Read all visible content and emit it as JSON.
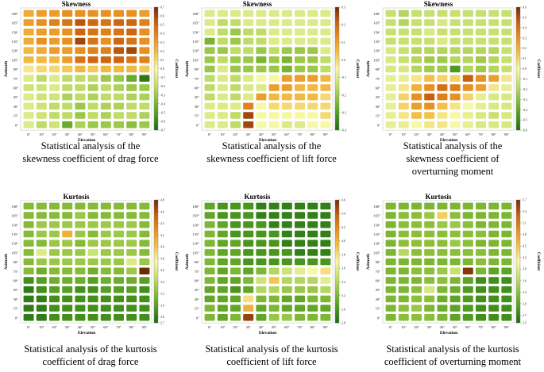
{
  "chart_data": [
    {
      "type": "heatmap",
      "title": "Skewness",
      "xlabel": "Elevation",
      "ylabel": "Azimuth",
      "colorbar_label": "Coefficient",
      "x": [
        "0°",
        "10°",
        "20°",
        "30°",
        "40°",
        "50°",
        "60°",
        "70°",
        "80°",
        "90°"
      ],
      "y": [
        "180°",
        "165°",
        "150°",
        "135°",
        "120°",
        "105°",
        "90°",
        "75°",
        "60°",
        "45°",
        "30°",
        "15°",
        "0°"
      ],
      "vmin": -0.7,
      "vmax": 0.7,
      "colorbar_ticks": [
        "0.7",
        "0.6",
        "0.5",
        "0.4",
        "0.3",
        "0.2",
        "0.1",
        "0.0",
        "-0.1",
        "-0.2",
        "-0.3",
        "-0.4",
        "-0.5",
        "-0.6",
        "-0.7"
      ],
      "values": [
        [
          0.25,
          0.3,
          0.3,
          0.35,
          0.35,
          0.35,
          0.35,
          0.35,
          0.35,
          0.3
        ],
        [
          0.3,
          0.35,
          0.4,
          0.45,
          0.55,
          0.5,
          0.45,
          0.5,
          0.5,
          0.4
        ],
        [
          0.25,
          0.3,
          0.3,
          0.35,
          0.5,
          0.45,
          0.4,
          0.45,
          0.5,
          0.35
        ],
        [
          0.25,
          0.35,
          0.3,
          0.35,
          0.6,
          0.45,
          0.35,
          0.5,
          0.45,
          0.35
        ],
        [
          0.2,
          0.25,
          0.3,
          0.3,
          0.35,
          0.4,
          0.4,
          0.55,
          0.6,
          0.35
        ],
        [
          0.2,
          0.2,
          0.2,
          0.3,
          0.45,
          0.5,
          0.5,
          0.5,
          0.45,
          0.4
        ],
        [
          0.05,
          0.1,
          0.1,
          0.15,
          0.2,
          0.15,
          0.2,
          0.2,
          0.2,
          0.15
        ],
        [
          -0.1,
          -0.2,
          -0.1,
          -0.2,
          -0.2,
          -0.2,
          -0.3,
          -0.3,
          -0.45,
          -0.65
        ],
        [
          -0.15,
          -0.15,
          -0.1,
          -0.2,
          -0.2,
          -0.25,
          -0.2,
          -0.25,
          -0.3,
          -0.3
        ],
        [
          -0.1,
          -0.15,
          -0.15,
          -0.25,
          -0.2,
          -0.25,
          -0.2,
          -0.2,
          -0.25,
          -0.25
        ],
        [
          -0.1,
          -0.15,
          -0.2,
          -0.2,
          -0.3,
          -0.2,
          -0.25,
          -0.25,
          -0.2,
          -0.2
        ],
        [
          -0.1,
          -0.15,
          -0.2,
          -0.2,
          -0.3,
          -0.2,
          -0.25,
          -0.2,
          -0.2,
          -0.25
        ],
        [
          -0.1,
          -0.2,
          -0.15,
          -0.45,
          -0.25,
          -0.3,
          -0.3,
          -0.3,
          -0.35,
          -0.3
        ]
      ]
    },
    {
      "type": "heatmap",
      "title": "Skewness",
      "xlabel": "Elevation",
      "ylabel": "Azimuth",
      "colorbar_label": "Coefficient",
      "x": [
        "0°",
        "10°",
        "20°",
        "30°",
        "40°",
        "50°",
        "60°",
        "70°",
        "80°",
        "90°"
      ],
      "y": [
        "180°",
        "165°",
        "150°",
        "135°",
        "120°",
        "105°",
        "90°",
        "75°",
        "60°",
        "45°",
        "30°",
        "15°",
        "0°"
      ],
      "vmin": -0.4,
      "vmax": 0.3,
      "colorbar_ticks": [
        "0.3",
        "0.2",
        "0.1",
        "0.0",
        "-0.1",
        "-0.2",
        "-0.3",
        "-0.4"
      ],
      "values": [
        [
          -0.1,
          -0.1,
          -0.1,
          -0.1,
          -0.1,
          -0.1,
          -0.1,
          -0.1,
          -0.1,
          -0.1
        ],
        [
          -0.1,
          -0.15,
          -0.15,
          -0.1,
          -0.1,
          -0.1,
          -0.1,
          -0.1,
          -0.1,
          -0.1
        ],
        [
          -0.1,
          -0.15,
          -0.2,
          -0.15,
          -0.15,
          -0.1,
          -0.1,
          -0.1,
          -0.1,
          -0.1
        ],
        [
          -0.25,
          -0.15,
          -0.2,
          -0.15,
          -0.15,
          -0.1,
          -0.1,
          -0.1,
          -0.1,
          -0.1
        ],
        [
          -0.2,
          -0.2,
          -0.15,
          -0.15,
          -0.2,
          -0.15,
          -0.2,
          -0.2,
          -0.2,
          -0.1
        ],
        [
          -0.2,
          -0.15,
          -0.2,
          -0.2,
          -0.25,
          -0.2,
          -0.25,
          -0.2,
          -0.2,
          -0.15
        ],
        [
          -0.2,
          -0.1,
          -0.2,
          -0.2,
          -0.2,
          -0.2,
          -0.25,
          -0.2,
          -0.2,
          -0.15
        ],
        [
          -0.15,
          -0.1,
          -0.15,
          -0.1,
          -0.05,
          -0.05,
          0.1,
          0.1,
          0.1,
          0.05
        ],
        [
          -0.15,
          -0.1,
          -0.15,
          -0.1,
          -0.1,
          0.1,
          0.1,
          0.05,
          0.05,
          0.05
        ],
        [
          -0.15,
          -0.1,
          -0.15,
          -0.1,
          0.1,
          0.05,
          0.05,
          0.05,
          0.05,
          0.0
        ],
        [
          -0.1,
          -0.1,
          -0.1,
          0.15,
          -0.05,
          0.0,
          0.0,
          0.0,
          0.0,
          0.0
        ],
        [
          -0.1,
          -0.1,
          -0.15,
          0.25,
          -0.05,
          -0.05,
          -0.05,
          -0.05,
          -0.05,
          0.0
        ],
        [
          -0.1,
          -0.1,
          -0.15,
          0.25,
          -0.05,
          -0.05,
          -0.1,
          -0.1,
          -0.05,
          -0.05
        ]
      ]
    },
    {
      "type": "heatmap",
      "title": "Skewness",
      "xlabel": "Elevation",
      "ylabel": "Azimuth",
      "colorbar_label": "Coefficient",
      "x": [
        "0°",
        "10°",
        "20°",
        "30°",
        "40°",
        "50°",
        "60°",
        "70°",
        "80°",
        "90°"
      ],
      "y": [
        "180°",
        "165°",
        "150°",
        "135°",
        "120°",
        "105°",
        "90°",
        "75°",
        "60°",
        "45°",
        "30°",
        "15°",
        "0°"
      ],
      "vmin": -0.6,
      "vmax": 0.6,
      "colorbar_ticks": [
        "0.6",
        "0.5",
        "0.4",
        "0.3",
        "0.2",
        "0.1",
        "0.0",
        "-0.1",
        "-0.2",
        "-0.3",
        "-0.4",
        "-0.5",
        "-0.6"
      ],
      "values": [
        [
          -0.15,
          -0.2,
          -0.15,
          -0.15,
          -0.15,
          -0.15,
          -0.15,
          -0.15,
          -0.15,
          -0.15
        ],
        [
          -0.15,
          -0.2,
          -0.15,
          -0.15,
          -0.1,
          -0.15,
          -0.15,
          -0.15,
          -0.15,
          -0.15
        ],
        [
          -0.15,
          -0.15,
          -0.15,
          -0.1,
          -0.15,
          -0.15,
          -0.15,
          -0.15,
          -0.15,
          -0.15
        ],
        [
          -0.15,
          -0.15,
          -0.15,
          -0.15,
          -0.1,
          -0.15,
          -0.15,
          -0.15,
          -0.15,
          -0.15
        ],
        [
          -0.1,
          -0.15,
          -0.2,
          -0.2,
          -0.2,
          -0.2,
          -0.2,
          -0.2,
          -0.2,
          -0.15
        ],
        [
          -0.1,
          -0.15,
          -0.2,
          -0.25,
          -0.25,
          -0.2,
          -0.2,
          -0.25,
          -0.2,
          -0.15
        ],
        [
          -0.1,
          -0.1,
          -0.2,
          -0.25,
          -0.25,
          -0.45,
          -0.2,
          -0.25,
          -0.2,
          -0.15
        ],
        [
          -0.05,
          -0.05,
          0.05,
          0.15,
          0.1,
          0.1,
          0.45,
          0.3,
          0.25,
          0.05
        ],
        [
          -0.05,
          0.05,
          0.2,
          0.3,
          0.4,
          0.35,
          0.3,
          0.25,
          0.05,
          -0.05
        ],
        [
          -0.05,
          0.1,
          0.3,
          0.45,
          0.35,
          0.3,
          0.1,
          -0.05,
          -0.1,
          -0.1
        ],
        [
          -0.05,
          0.1,
          0.25,
          0.3,
          0.15,
          0.05,
          0.0,
          -0.05,
          -0.1,
          -0.1
        ],
        [
          -0.05,
          0.05,
          0.15,
          0.15,
          0.05,
          0.0,
          -0.05,
          -0.1,
          -0.15,
          -0.1
        ],
        [
          -0.05,
          -0.05,
          0.0,
          0.05,
          0.05,
          0.0,
          -0.05,
          -0.1,
          -0.1,
          -0.1
        ]
      ]
    },
    {
      "type": "heatmap",
      "title": "Kurtosis",
      "xlabel": "Elevation",
      "ylabel": "Azimuth",
      "colorbar_label": "Coefficient",
      "x": [
        "0°",
        "10°",
        "20°",
        "30°",
        "40°",
        "50°",
        "60°",
        "70°",
        "80°",
        "90°"
      ],
      "y": [
        "180°",
        "165°",
        "150°",
        "135°",
        "120°",
        "105°",
        "90°",
        "75°",
        "60°",
        "45°",
        "30°",
        "15°",
        "0°"
      ],
      "vmin": 2.7,
      "vmax": 4.8,
      "colorbar_ticks": [
        "4.8",
        "4.6",
        "4.4",
        "4.2",
        "4.0",
        "3.8",
        "3.6",
        "3.4",
        "3.2",
        "3.0",
        "2.8",
        "2.7"
      ],
      "values": [
        [
          3.2,
          3.2,
          3.2,
          3.2,
          3.2,
          3.2,
          3.2,
          3.2,
          3.2,
          3.2
        ],
        [
          3.2,
          3.2,
          3.2,
          3.2,
          3.3,
          3.2,
          3.2,
          3.2,
          3.2,
          3.2
        ],
        [
          3.2,
          3.3,
          3.3,
          3.3,
          3.3,
          3.3,
          3.3,
          3.3,
          3.3,
          3.2
        ],
        [
          3.2,
          3.3,
          3.3,
          4.1,
          3.3,
          3.2,
          3.3,
          3.3,
          3.3,
          3.2
        ],
        [
          3.2,
          3.2,
          3.3,
          3.3,
          3.2,
          3.3,
          3.3,
          3.3,
          3.3,
          3.2
        ],
        [
          3.2,
          3.6,
          3.3,
          3.3,
          3.3,
          3.5,
          3.3,
          3.3,
          3.3,
          3.2
        ],
        [
          3.2,
          3.3,
          3.3,
          3.3,
          3.3,
          3.3,
          3.3,
          3.3,
          3.6,
          3.3
        ],
        [
          3.2,
          3.1,
          3.2,
          3.2,
          3.2,
          3.1,
          3.2,
          3.2,
          3.3,
          4.8
        ],
        [
          2.9,
          3.0,
          3.1,
          3.1,
          3.1,
          3.0,
          3.1,
          3.1,
          3.1,
          3.0
        ],
        [
          2.8,
          2.9,
          3.0,
          3.0,
          2.9,
          2.9,
          3.0,
          3.0,
          3.0,
          2.9
        ],
        [
          2.8,
          2.8,
          2.9,
          2.9,
          2.9,
          2.9,
          2.9,
          2.9,
          2.9,
          2.9
        ],
        [
          2.8,
          2.8,
          2.9,
          2.9,
          2.9,
          2.9,
          2.9,
          2.9,
          2.9,
          2.9
        ],
        [
          2.8,
          2.8,
          2.9,
          2.9,
          2.9,
          2.9,
          2.9,
          2.9,
          2.9,
          2.9
        ]
      ]
    },
    {
      "type": "heatmap",
      "title": "Kurtosis",
      "xlabel": "Elevation",
      "ylabel": "Azimuth",
      "colorbar_label": "Coefficient",
      "x": [
        "0°",
        "10°",
        "20°",
        "30°",
        "40°",
        "50°",
        "60°",
        "70°",
        "80°",
        "90°"
      ],
      "y": [
        "180°",
        "165°",
        "150°",
        "135°",
        "120°",
        "105°",
        "90°",
        "75°",
        "60°",
        "45°",
        "30°",
        "15°",
        "0°"
      ],
      "vmin": 2.8,
      "vmax": 4.6,
      "colorbar_ticks": [
        "4.6",
        "4.4",
        "4.2",
        "4.0",
        "3.8",
        "3.6",
        "3.4",
        "3.2",
        "3.0",
        "2.8"
      ],
      "values": [
        [
          3.1,
          3.0,
          3.0,
          3.0,
          2.9,
          2.9,
          2.9,
          2.9,
          2.9,
          2.9
        ],
        [
          3.1,
          3.0,
          3.0,
          3.0,
          2.9,
          2.9,
          2.9,
          2.9,
          2.9,
          2.9
        ],
        [
          3.2,
          3.1,
          3.0,
          3.0,
          3.0,
          2.9,
          2.9,
          2.9,
          2.9,
          2.9
        ],
        [
          3.2,
          3.1,
          3.0,
          3.0,
          3.0,
          3.0,
          2.9,
          2.9,
          2.9,
          2.9
        ],
        [
          3.2,
          3.1,
          3.1,
          3.0,
          3.0,
          3.0,
          2.9,
          2.9,
          2.9,
          2.9
        ],
        [
          3.2,
          3.1,
          3.1,
          3.0,
          3.0,
          3.0,
          3.0,
          2.9,
          2.9,
          2.9
        ],
        [
          3.2,
          3.1,
          3.1,
          3.0,
          3.0,
          3.0,
          3.0,
          3.0,
          3.0,
          3.0
        ],
        [
          3.2,
          3.1,
          3.2,
          3.1,
          3.2,
          3.4,
          3.5,
          3.6,
          3.7,
          3.8
        ],
        [
          3.2,
          3.1,
          3.1,
          3.2,
          3.5,
          3.9,
          3.4,
          3.4,
          3.4,
          3.6
        ],
        [
          3.1,
          3.1,
          3.0,
          3.1,
          3.4,
          3.4,
          3.3,
          3.3,
          3.3,
          3.4
        ],
        [
          3.1,
          3.1,
          3.1,
          3.8,
          3.2,
          3.2,
          3.1,
          3.1,
          3.2,
          3.2
        ],
        [
          3.2,
          3.1,
          3.1,
          4.0,
          3.1,
          3.2,
          3.1,
          3.1,
          3.1,
          3.1
        ],
        [
          3.2,
          3.1,
          3.2,
          4.5,
          3.1,
          3.3,
          3.3,
          3.2,
          3.2,
          3.2
        ]
      ]
    },
    {
      "type": "heatmap",
      "title": "Kurtosis",
      "xlabel": "Elevation",
      "ylabel": "Azimuth",
      "colorbar_label": "Coefficient",
      "x": [
        "0°",
        "10°",
        "20°",
        "30°",
        "40°",
        "50°",
        "60°",
        "70°",
        "80°",
        "90°"
      ],
      "y": [
        "180°",
        "165°",
        "150°",
        "135°",
        "120°",
        "105°",
        "90°",
        "75°",
        "60°",
        "45°",
        "30°",
        "15°",
        "0°"
      ],
      "vmin": 2.5,
      "vmax": 5.7,
      "colorbar_ticks": [
        "5.7",
        "5.4",
        "5.1",
        "4.8",
        "4.5",
        "4.2",
        "3.9",
        "3.6",
        "3.3",
        "3.0",
        "2.7",
        "2.5"
      ],
      "values": [
        [
          3.2,
          3.2,
          3.2,
          3.2,
          3.2,
          3.2,
          3.2,
          3.2,
          3.2,
          3.2
        ],
        [
          3.2,
          3.3,
          3.3,
          3.4,
          4.4,
          3.3,
          3.2,
          3.2,
          3.2,
          3.2
        ],
        [
          3.2,
          3.3,
          3.3,
          3.3,
          3.4,
          3.4,
          3.3,
          3.2,
          3.2,
          3.2
        ],
        [
          3.2,
          3.3,
          3.3,
          3.3,
          3.3,
          3.3,
          3.3,
          3.3,
          3.2,
          3.2
        ],
        [
          3.2,
          3.3,
          3.3,
          3.3,
          3.3,
          3.4,
          3.3,
          3.2,
          3.2,
          3.2
        ],
        [
          3.2,
          3.6,
          3.3,
          3.3,
          3.3,
          3.3,
          3.3,
          3.3,
          3.2,
          3.2
        ],
        [
          3.2,
          3.2,
          3.2,
          3.2,
          3.2,
          3.2,
          3.2,
          3.3,
          3.2,
          3.2
        ],
        [
          3.2,
          3.2,
          3.3,
          3.3,
          3.4,
          3.7,
          5.6,
          3.2,
          3.0,
          3.0
        ],
        [
          3.2,
          3.2,
          3.2,
          3.3,
          3.3,
          3.2,
          3.0,
          2.8,
          2.8,
          2.8
        ],
        [
          3.2,
          3.2,
          3.3,
          3.8,
          3.2,
          3.1,
          2.9,
          2.8,
          2.8,
          2.8
        ],
        [
          3.2,
          3.2,
          3.3,
          3.3,
          3.1,
          3.0,
          2.9,
          2.8,
          2.8,
          2.8
        ],
        [
          3.2,
          3.3,
          3.4,
          3.2,
          3.1,
          3.0,
          2.9,
          2.8,
          2.8,
          2.8
        ],
        [
          3.2,
          3.3,
          3.3,
          3.3,
          3.2,
          3.0,
          2.9,
          2.8,
          2.8,
          2.8
        ]
      ]
    }
  ],
  "captions": [
    {
      "line1": "Statistical analysis of the",
      "line2": "skewness coefficient of drag force",
      "line3": ""
    },
    {
      "line1": "Statistical analysis of the",
      "line2": "skewness coefficient of lift force",
      "line3": ""
    },
    {
      "line1": "Statistical analysis of the",
      "line2": "skewness coefficient of",
      "line3": "overturning moment"
    },
    {
      "line1": "Statistical analysis of the kurtosis",
      "line2": "coefficient of drag force",
      "line3": ""
    },
    {
      "line1": "Statistical analysis of the kurtosis",
      "line2": "coefficient of lift force",
      "line3": ""
    },
    {
      "line1": "Statistical analysis of the kurtosis",
      "line2": "coefficient of overturning moment",
      "line3": ""
    }
  ],
  "colors": {
    "scale": [
      "#1e6b14",
      "#4e9a1e",
      "#8bbf3a",
      "#c8e070",
      "#f7f7a8",
      "#f2c04a",
      "#e89020",
      "#c86010",
      "#6e2a08"
    ]
  }
}
